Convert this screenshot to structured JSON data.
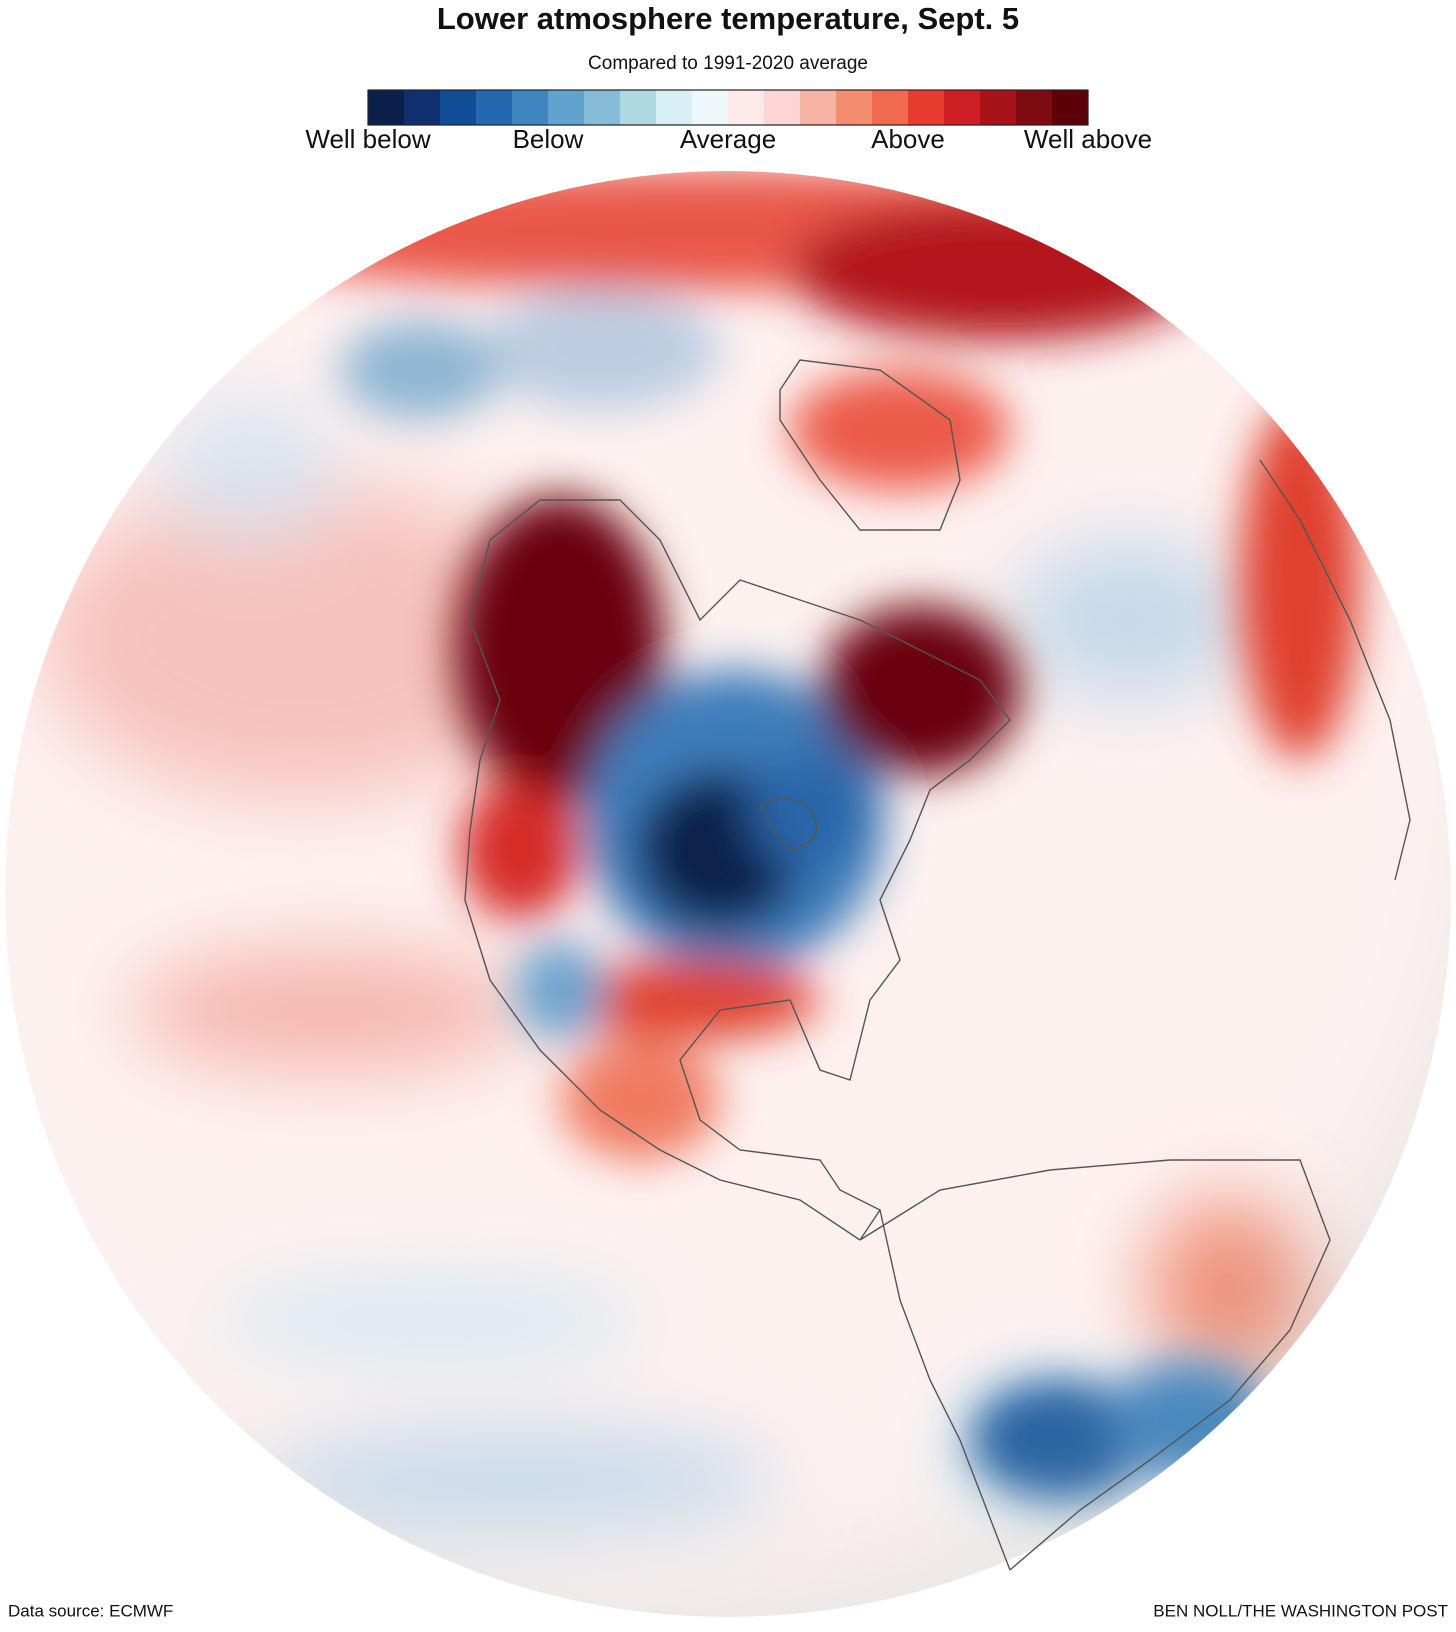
{
  "title": "Lower atmosphere temperature, Sept. 5",
  "subtitle": "Compared to 1991-2020 average",
  "legend": {
    "colors": [
      "#0a1f4a",
      "#0f2f6e",
      "#114d96",
      "#2468b0",
      "#3f85c0",
      "#62a2cf",
      "#86bcd7",
      "#aed8e2",
      "#d8eff6",
      "#eef8fb",
      "#fde8ea",
      "#fbd6d4",
      "#f7b4a5",
      "#f48c70",
      "#f06a4f",
      "#e63b2e",
      "#cd1f24",
      "#a81319",
      "#7d0b10",
      "#5c0206"
    ],
    "labels": [
      "Well below",
      "Below",
      "Average",
      "Above",
      "Well above"
    ]
  },
  "source": "Data source: ECMWF",
  "credit": "BEN NOLL/THE WASHINGTON POST"
}
